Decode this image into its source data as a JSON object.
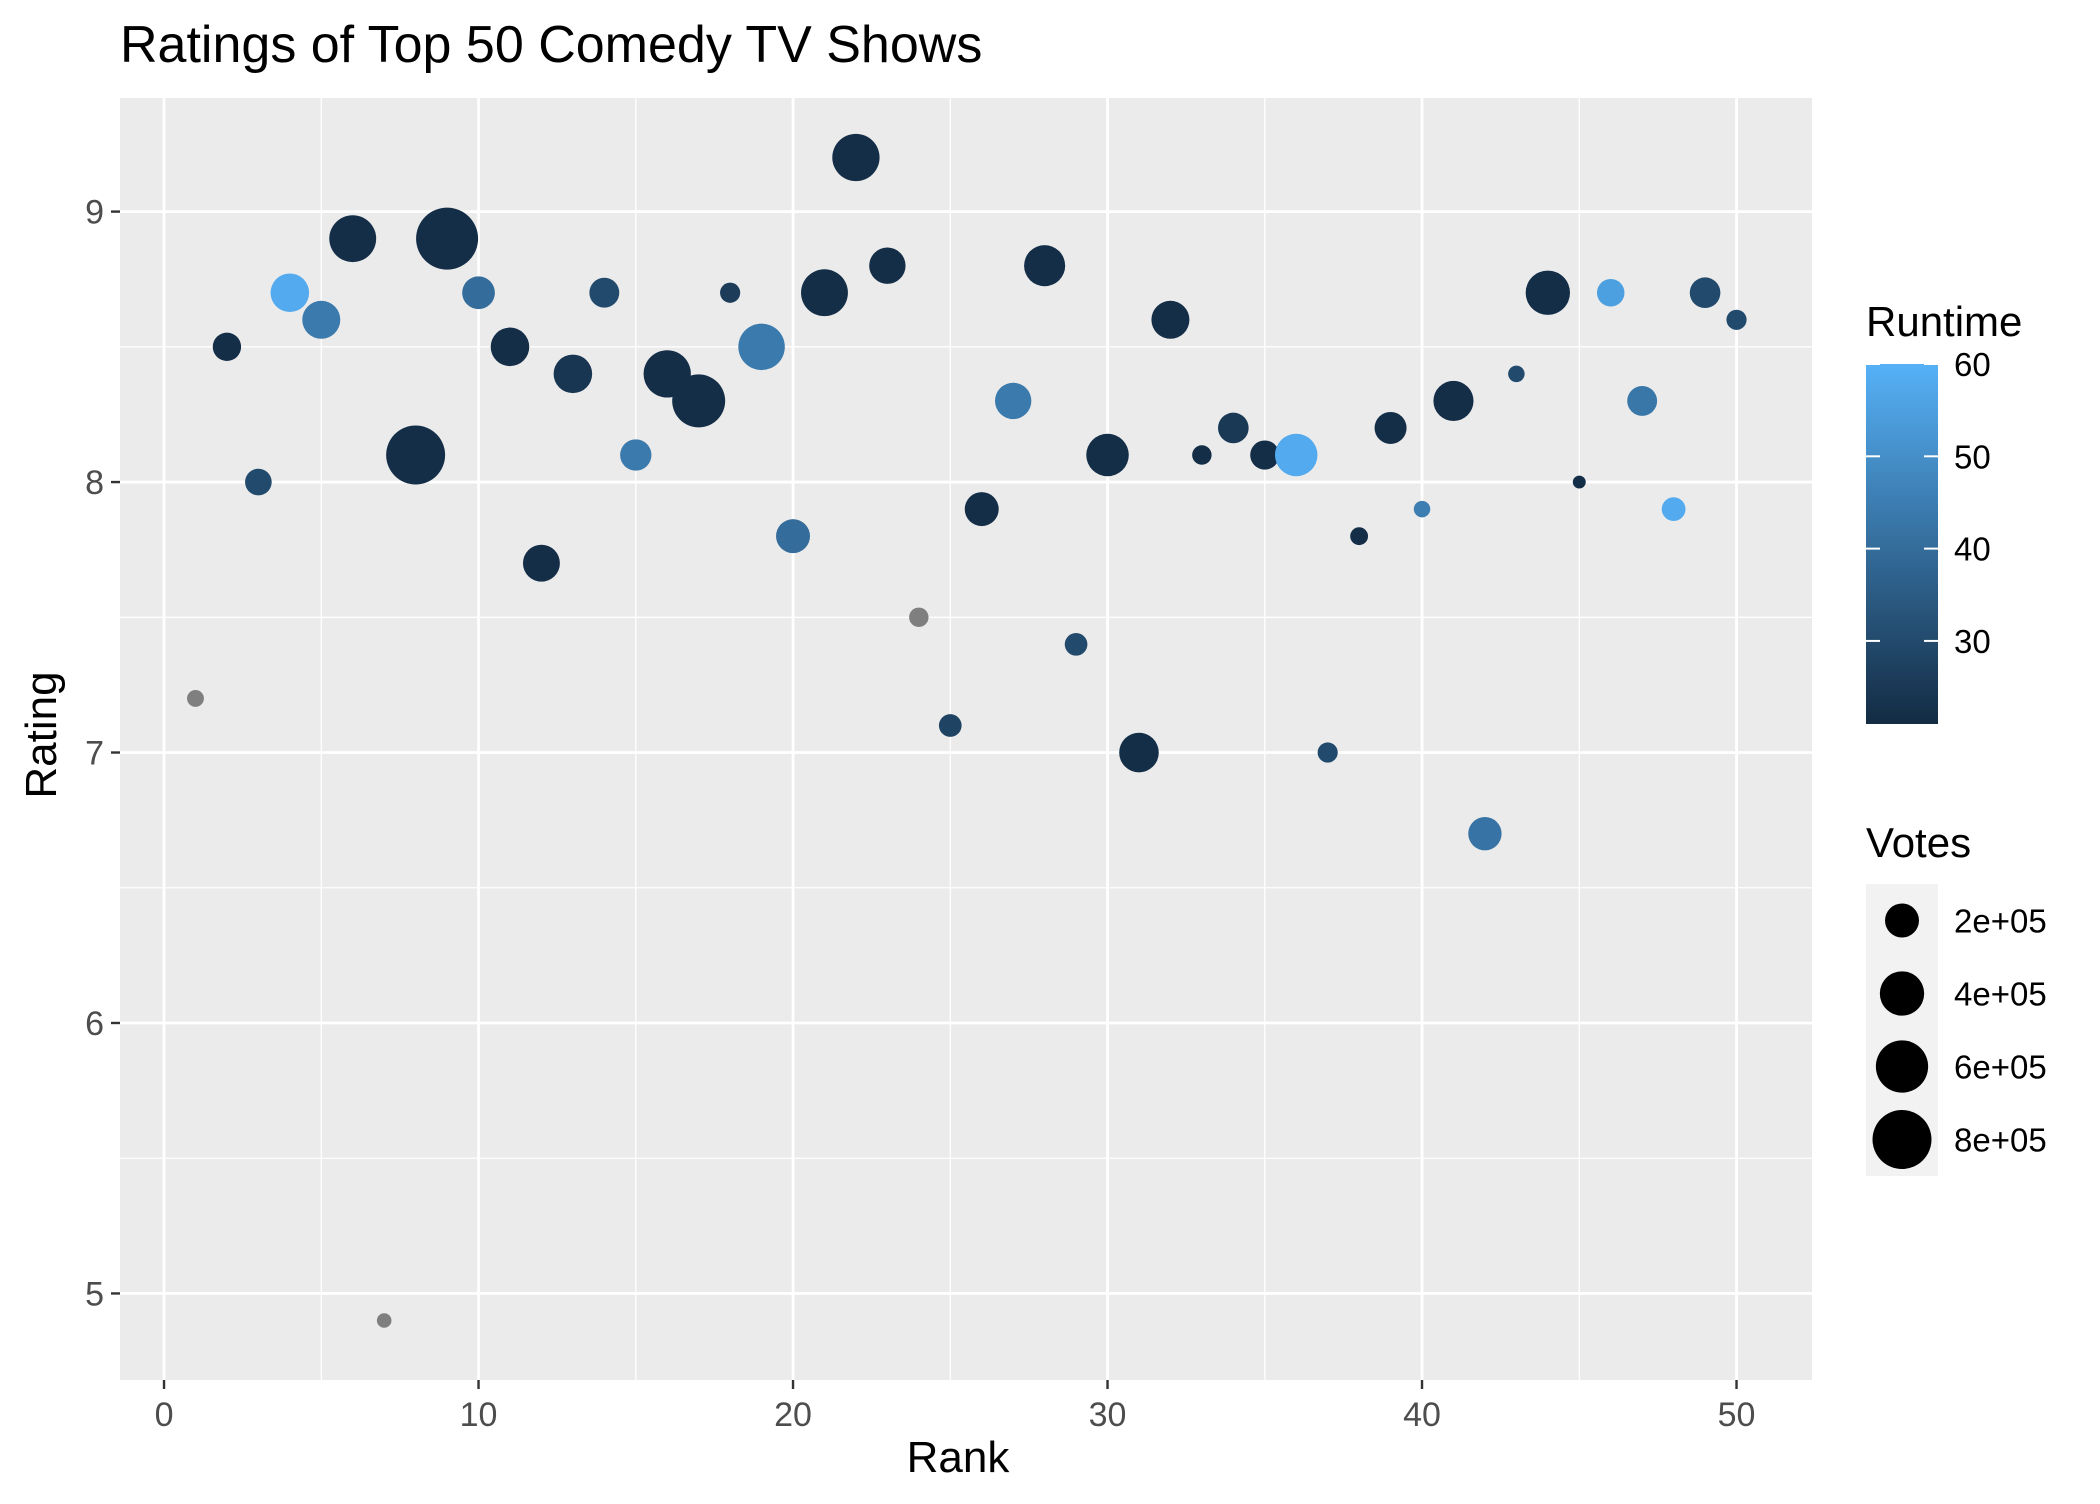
{
  "chart_data": {
    "type": "scatter",
    "title": "Ratings of Top 50 Comedy TV Shows",
    "xlabel": "Rank",
    "ylabel": "Rating",
    "xlim": [
      -1.4,
      52.4
    ],
    "ylim": [
      4.68,
      9.42
    ],
    "x_ticks": [
      0,
      10,
      20,
      30,
      40,
      50
    ],
    "y_ticks": [
      5,
      6,
      7,
      8,
      9
    ],
    "grid": true,
    "background": "#ebebeb",
    "na_color": "#7f7f7f",
    "color_scale": {
      "title": "Runtime",
      "low": 21,
      "high": 60,
      "low_color": "#132b43",
      "high_color": "#56b1f7",
      "ticks": [
        30,
        40,
        50,
        60
      ]
    },
    "size_scale": {
      "title": "Votes",
      "max": 900000,
      "breaks": [
        200000,
        400000,
        600000,
        800000
      ],
      "labels": [
        "2e+05",
        "4e+05",
        "6e+05",
        "8e+05"
      ]
    },
    "points": [
      {
        "rank": 1,
        "rating": 7.2,
        "runtime": null,
        "votes": 20000
      },
      {
        "rank": 2,
        "rating": 8.5,
        "runtime": 22,
        "votes": 120000
      },
      {
        "rank": 3,
        "rating": 8.0,
        "runtime": 30,
        "votes": 100000
      },
      {
        "rank": 4,
        "rating": 8.7,
        "runtime": 58,
        "votes": 280000
      },
      {
        "rank": 5,
        "rating": 8.6,
        "runtime": 44,
        "votes": 270000
      },
      {
        "rank": 6,
        "rating": 8.9,
        "runtime": 22,
        "votes": 460000
      },
      {
        "rank": 7,
        "rating": 4.9,
        "runtime": null,
        "votes": 10000
      },
      {
        "rank": 8,
        "rating": 8.1,
        "runtime": 22,
        "votes": 800000
      },
      {
        "rank": 9,
        "rating": 8.9,
        "runtime": 22,
        "votes": 900000
      },
      {
        "rank": 10,
        "rating": 8.7,
        "runtime": 40,
        "votes": 180000
      },
      {
        "rank": 11,
        "rating": 8.5,
        "runtime": 22,
        "votes": 280000
      },
      {
        "rank": 12,
        "rating": 7.7,
        "runtime": 22,
        "votes": 250000
      },
      {
        "rank": 13,
        "rating": 8.4,
        "runtime": 24,
        "votes": 280000
      },
      {
        "rank": 14,
        "rating": 8.7,
        "runtime": 30,
        "votes": 140000
      },
      {
        "rank": 15,
        "rating": 8.1,
        "runtime": 44,
        "votes": 160000
      },
      {
        "rank": 16,
        "rating": 8.4,
        "runtime": 22,
        "votes": 470000
      },
      {
        "rank": 17,
        "rating": 8.3,
        "runtime": 22,
        "votes": 620000
      },
      {
        "rank": 18,
        "rating": 8.7,
        "runtime": 26,
        "votes": 40000
      },
      {
        "rank": 19,
        "rating": 8.5,
        "runtime": 44,
        "votes": 450000
      },
      {
        "rank": 20,
        "rating": 7.8,
        "runtime": 40,
        "votes": 200000
      },
      {
        "rank": 21,
        "rating": 8.7,
        "runtime": 22,
        "votes": 460000
      },
      {
        "rank": 22,
        "rating": 9.2,
        "runtime": 22,
        "votes": 470000
      },
      {
        "rank": 23,
        "rating": 8.8,
        "runtime": 22,
        "votes": 240000
      },
      {
        "rank": 24,
        "rating": 7.5,
        "runtime": null,
        "votes": 35000
      },
      {
        "rank": 25,
        "rating": 7.1,
        "runtime": 28,
        "votes": 60000
      },
      {
        "rank": 26,
        "rating": 7.9,
        "runtime": 22,
        "votes": 200000
      },
      {
        "rank": 27,
        "rating": 8.3,
        "runtime": 44,
        "votes": 240000
      },
      {
        "rank": 28,
        "rating": 8.8,
        "runtime": 22,
        "votes": 330000
      },
      {
        "rank": 29,
        "rating": 7.4,
        "runtime": 30,
        "votes": 60000
      },
      {
        "rank": 30,
        "rating": 8.1,
        "runtime": 22,
        "votes": 360000
      },
      {
        "rank": 31,
        "rating": 7.0,
        "runtime": 22,
        "votes": 300000
      },
      {
        "rank": 32,
        "rating": 8.6,
        "runtime": 22,
        "votes": 270000
      },
      {
        "rank": 33,
        "rating": 8.1,
        "runtime": 22,
        "votes": 35000
      },
      {
        "rank": 34,
        "rating": 8.2,
        "runtime": 25,
        "votes": 150000
      },
      {
        "rank": 35,
        "rating": 8.1,
        "runtime": 22,
        "votes": 130000
      },
      {
        "rank": 36,
        "rating": 8.1,
        "runtime": 58,
        "votes": 360000
      },
      {
        "rank": 37,
        "rating": 7.0,
        "runtime": 30,
        "votes": 40000
      },
      {
        "rank": 38,
        "rating": 7.8,
        "runtime": 22,
        "votes": 25000
      },
      {
        "rank": 39,
        "rating": 8.2,
        "runtime": 22,
        "votes": 170000
      },
      {
        "rank": 40,
        "rating": 7.9,
        "runtime": 45,
        "votes": 18000
      },
      {
        "rank": 41,
        "rating": 8.3,
        "runtime": 22,
        "votes": 310000
      },
      {
        "rank": 42,
        "rating": 6.7,
        "runtime": 42,
        "votes": 190000
      },
      {
        "rank": 43,
        "rating": 8.4,
        "runtime": 30,
        "votes": 18000
      },
      {
        "rank": 44,
        "rating": 8.7,
        "runtime": 22,
        "votes": 400000
      },
      {
        "rank": 45,
        "rating": 8.0,
        "runtime": 22,
        "votes": 5000
      },
      {
        "rank": 46,
        "rating": 8.7,
        "runtime": 55,
        "votes": 110000
      },
      {
        "rank": 47,
        "rating": 8.3,
        "runtime": 43,
        "votes": 140000
      },
      {
        "rank": 48,
        "rating": 7.9,
        "runtime": 58,
        "votes": 70000
      },
      {
        "rank": 49,
        "rating": 8.7,
        "runtime": 30,
        "votes": 150000
      },
      {
        "rank": 50,
        "rating": 8.6,
        "runtime": 30,
        "votes": 40000
      }
    ]
  }
}
